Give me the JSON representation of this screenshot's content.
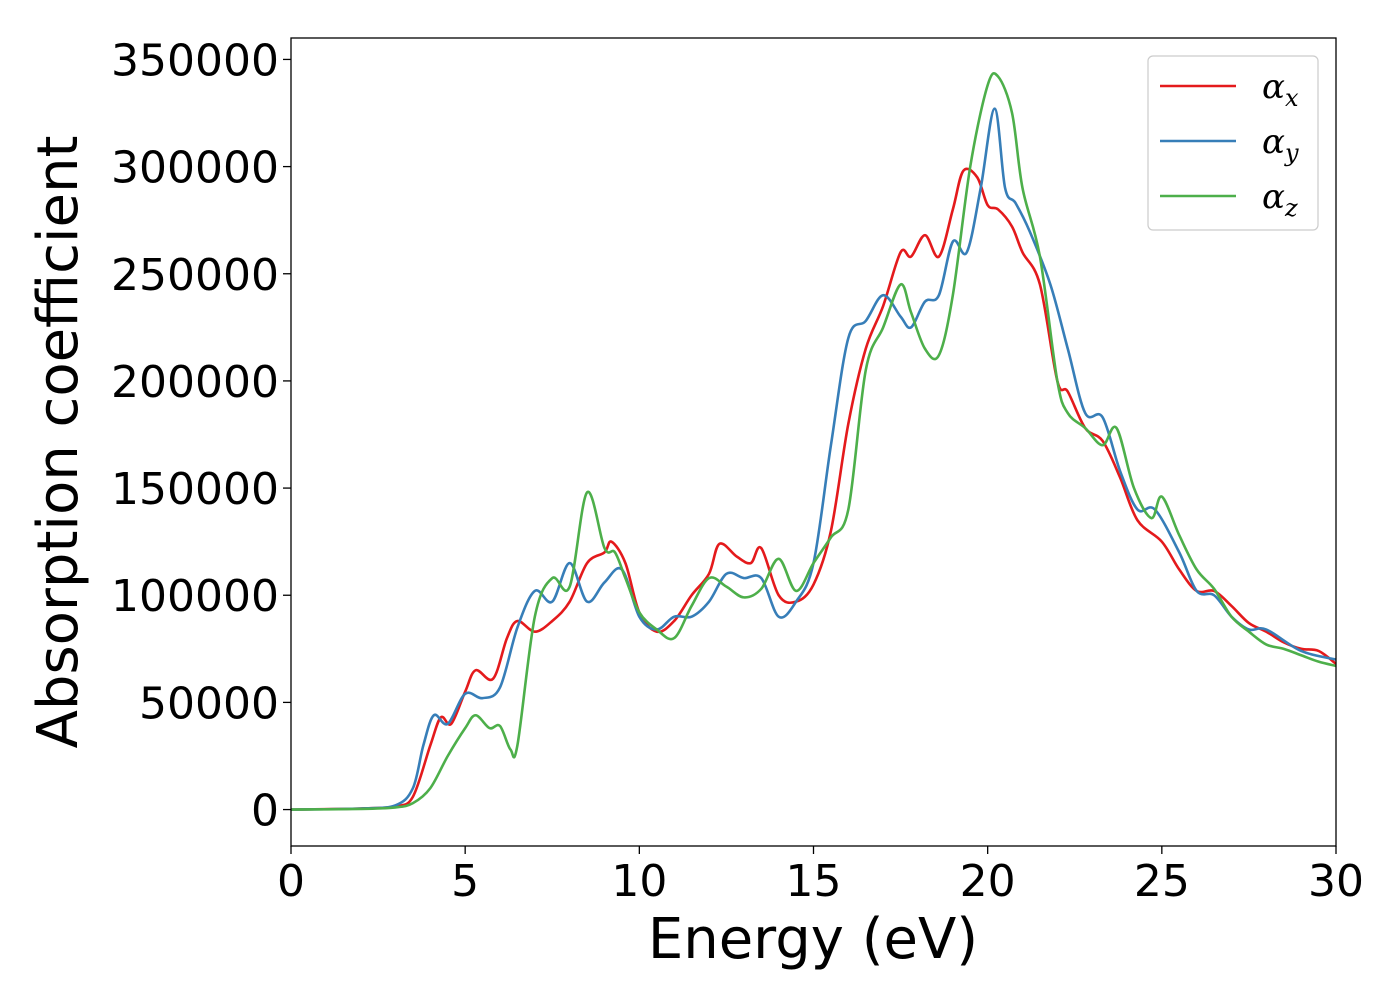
{
  "chart_data": {
    "type": "line",
    "xlabel": "Energy (eV)",
    "ylabel": "Absorption coefficient",
    "xlim": [
      0,
      30
    ],
    "ylim": [
      -17000,
      360000
    ],
    "xticks": [
      "0",
      "5",
      "10",
      "15",
      "20",
      "25",
      "30"
    ],
    "yticks": [
      "0",
      "50000",
      "100000",
      "150000",
      "200000",
      "250000",
      "300000",
      "350000"
    ],
    "grid": false,
    "legend_position": "top-right",
    "series": [
      {
        "name": "αx",
        "symbol": "α",
        "subscript": "x",
        "color": "#e41a1c",
        "x": [
          0,
          2,
          3,
          3.5,
          4,
          4.3,
          4.6,
          5,
          5.3,
          5.8,
          6.2,
          6.5,
          7,
          7.5,
          8,
          8.5,
          9,
          9.2,
          9.6,
          10,
          10.5,
          11,
          11.5,
          12,
          12.3,
          12.8,
          13.2,
          13.5,
          14,
          14.5,
          15,
          15.5,
          16,
          16.5,
          17,
          17.5,
          17.8,
          18.2,
          18.6,
          19,
          19.3,
          19.7,
          20,
          20.3,
          20.7,
          21,
          21.5,
          22,
          22.3,
          22.8,
          23.3,
          23.8,
          24.3,
          25,
          25.5,
          26,
          26.5,
          27,
          27.5,
          28,
          28.5,
          29,
          29.5,
          30
        ],
        "values": [
          0,
          500,
          1500,
          6000,
          30000,
          43000,
          40000,
          55000,
          65000,
          61000,
          80000,
          88000,
          83000,
          88000,
          97000,
          115000,
          120000,
          125000,
          115000,
          92000,
          83000,
          88000,
          100000,
          110000,
          124000,
          118000,
          115000,
          122000,
          100000,
          97000,
          105000,
          130000,
          180000,
          215000,
          235000,
          260000,
          258000,
          268000,
          258000,
          280000,
          298000,
          295000,
          282000,
          280000,
          272000,
          260000,
          245000,
          200000,
          195000,
          178000,
          172000,
          155000,
          135000,
          125000,
          112000,
          102000,
          102000,
          95000,
          87000,
          83000,
          78000,
          75000,
          74000,
          68000
        ]
      },
      {
        "name": "αy",
        "symbol": "α",
        "subscript": "y",
        "color": "#377eb8",
        "x": [
          0,
          2,
          3,
          3.5,
          3.8,
          4.1,
          4.5,
          5,
          5.5,
          6,
          6.5,
          7,
          7.5,
          8,
          8.5,
          9,
          9.5,
          10,
          10.5,
          11,
          11.5,
          12,
          12.5,
          13,
          13.5,
          14,
          14.5,
          15,
          15.5,
          16,
          16.5,
          17,
          17.5,
          17.8,
          18.2,
          18.6,
          19,
          19.4,
          19.8,
          20.2,
          20.5,
          20.8,
          21.2,
          21.8,
          22.3,
          22.8,
          23.3,
          23.8,
          24.3,
          24.8,
          25.5,
          26,
          26.5,
          27,
          27.5,
          28,
          29,
          30
        ],
        "values": [
          0,
          500,
          2000,
          10000,
          30000,
          44000,
          40000,
          54000,
          52000,
          57000,
          85000,
          102000,
          97000,
          115000,
          97000,
          106000,
          112000,
          90000,
          84000,
          90000,
          90000,
          97000,
          110000,
          108000,
          108000,
          90000,
          97000,
          115000,
          170000,
          220000,
          228000,
          240000,
          230000,
          225000,
          237000,
          240000,
          265000,
          260000,
          290000,
          327000,
          290000,
          283000,
          270000,
          245000,
          215000,
          185000,
          183000,
          158000,
          140000,
          140000,
          120000,
          102000,
          100000,
          90000,
          84000,
          84000,
          74000,
          70000
        ]
      },
      {
        "name": "αz",
        "symbol": "α",
        "subscript": "z",
        "color": "#4daf4a",
        "x": [
          0,
          2,
          3,
          3.5,
          4,
          4.5,
          5,
          5.3,
          5.7,
          6,
          6.3,
          6.5,
          7,
          7.5,
          8,
          8.5,
          9,
          9.3,
          9.6,
          10,
          10.5,
          11,
          11.5,
          12,
          12.5,
          13,
          13.5,
          14,
          14.5,
          15,
          15.5,
          16,
          16.5,
          17,
          17.5,
          17.8,
          18.2,
          18.6,
          19,
          19.5,
          20,
          20.3,
          20.7,
          21,
          21.5,
          22,
          22.3,
          22.8,
          23.3,
          23.7,
          24.2,
          24.7,
          25,
          25.5,
          26,
          26.5,
          27,
          27.5,
          28,
          28.5,
          29,
          29.5,
          30
        ],
        "values": [
          0,
          300,
          1000,
          3000,
          10000,
          25000,
          38000,
          44000,
          38000,
          39000,
          28000,
          30000,
          90000,
          108000,
          104000,
          148000,
          122000,
          120000,
          108000,
          92000,
          84000,
          80000,
          95000,
          108000,
          104000,
          99000,
          103000,
          117000,
          102000,
          115000,
          127000,
          140000,
          205000,
          225000,
          245000,
          232000,
          215000,
          212000,
          240000,
          300000,
          338000,
          342000,
          325000,
          290000,
          258000,
          200000,
          185000,
          178000,
          170000,
          178000,
          150000,
          136000,
          146000,
          128000,
          112000,
          103000,
          90000,
          83000,
          77000,
          75000,
          72000,
          69000,
          67000
        ]
      }
    ]
  }
}
